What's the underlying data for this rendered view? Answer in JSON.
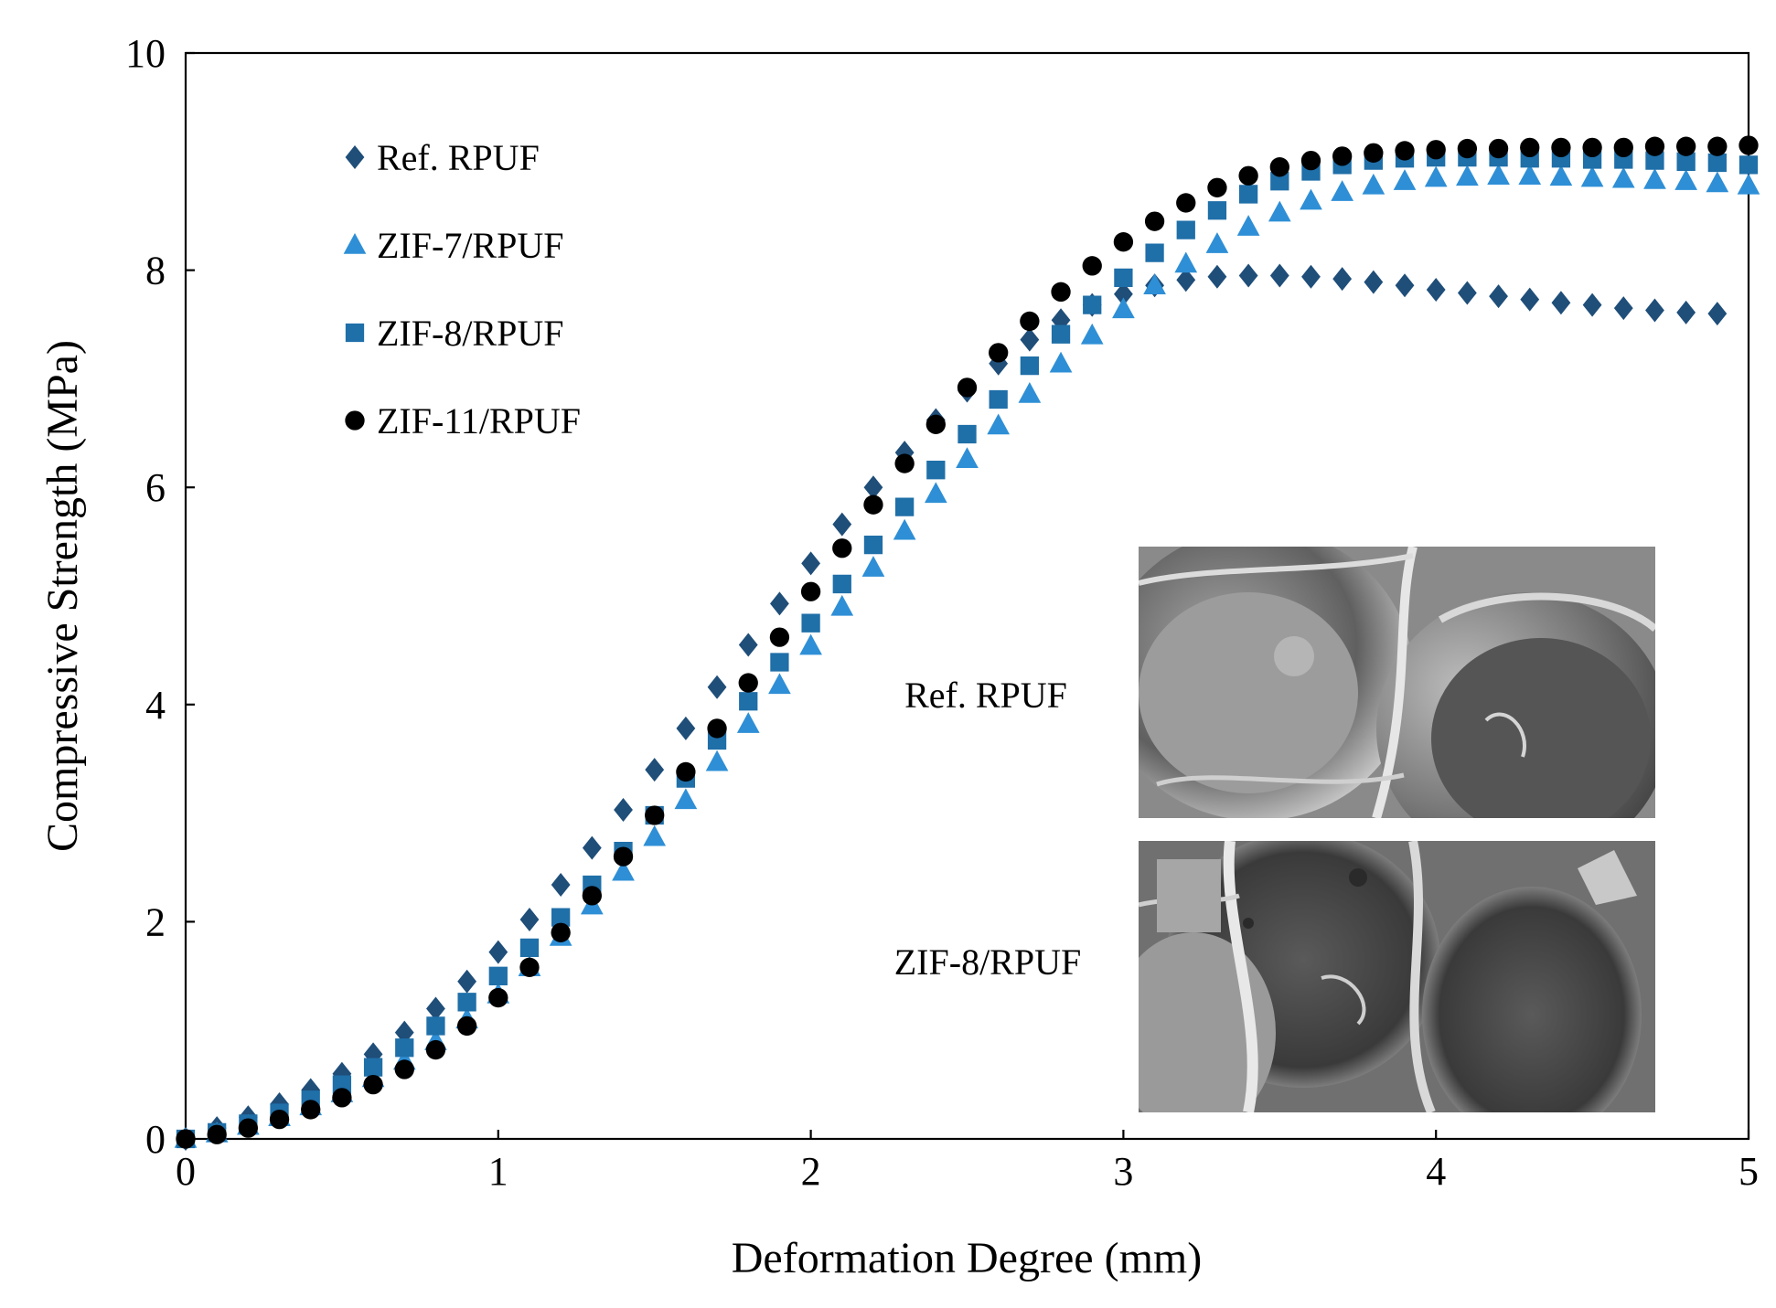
{
  "chart_data": {
    "type": "scatter",
    "title": "",
    "xlabel": "Deformation Degree (mm)",
    "ylabel": "Compressive Strength (MPa)",
    "xlim": [
      0,
      5
    ],
    "ylim": [
      0,
      10
    ],
    "xticks": [
      0,
      1,
      2,
      3,
      4,
      5
    ],
    "yticks": [
      0,
      2,
      4,
      6,
      8,
      10
    ],
    "grid": false,
    "legend_position": "top-left",
    "series": [
      {
        "name": "Ref. RPUF",
        "marker": "diamond",
        "color": "#1f4e79",
        "x": [
          0.0,
          0.1,
          0.2,
          0.3,
          0.4,
          0.5,
          0.6,
          0.7,
          0.8,
          0.9,
          1.0,
          1.1,
          1.2,
          1.3,
          1.4,
          1.5,
          1.6,
          1.7,
          1.8,
          1.9,
          2.0,
          2.1,
          2.2,
          2.3,
          2.4,
          2.5,
          2.6,
          2.7,
          2.8,
          2.9,
          3.0,
          3.1,
          3.2,
          3.3,
          3.4,
          3.5,
          3.6,
          3.7,
          3.8,
          3.9,
          4.0,
          4.1,
          4.2,
          4.3,
          4.4,
          4.5,
          4.6,
          4.7,
          4.8,
          4.9
        ],
        "y": [
          0.0,
          0.1,
          0.2,
          0.32,
          0.45,
          0.6,
          0.78,
          0.98,
          1.2,
          1.45,
          1.72,
          2.02,
          2.34,
          2.68,
          3.03,
          3.4,
          3.78,
          4.16,
          4.55,
          4.93,
          5.3,
          5.66,
          6.0,
          6.32,
          6.62,
          6.89,
          7.14,
          7.36,
          7.54,
          7.68,
          7.78,
          7.86,
          7.91,
          7.94,
          7.95,
          7.95,
          7.94,
          7.92,
          7.89,
          7.86,
          7.82,
          7.79,
          7.76,
          7.73,
          7.7,
          7.68,
          7.65,
          7.63,
          7.61,
          7.6
        ]
      },
      {
        "name": "ZIF-7/RPUF",
        "marker": "triangle",
        "color": "#2e8fd6",
        "x": [
          0.0,
          0.1,
          0.2,
          0.3,
          0.4,
          0.5,
          0.6,
          0.7,
          0.8,
          0.9,
          1.0,
          1.1,
          1.2,
          1.3,
          1.4,
          1.5,
          1.6,
          1.7,
          1.8,
          1.9,
          2.0,
          2.1,
          2.2,
          2.3,
          2.4,
          2.5,
          2.6,
          2.7,
          2.8,
          2.9,
          3.0,
          3.1,
          3.2,
          3.3,
          3.4,
          3.5,
          3.6,
          3.7,
          3.8,
          3.9,
          4.0,
          4.1,
          4.2,
          4.3,
          4.4,
          4.5,
          4.6,
          4.7,
          4.8,
          4.9,
          5.0
        ],
        "y": [
          0.0,
          0.05,
          0.12,
          0.2,
          0.3,
          0.42,
          0.56,
          0.72,
          0.9,
          1.1,
          1.33,
          1.58,
          1.86,
          2.15,
          2.46,
          2.78,
          3.12,
          3.47,
          3.82,
          4.18,
          4.54,
          4.9,
          5.26,
          5.6,
          5.94,
          6.26,
          6.57,
          6.86,
          7.14,
          7.4,
          7.64,
          7.86,
          8.06,
          8.24,
          8.4,
          8.53,
          8.64,
          8.72,
          8.78,
          8.82,
          8.85,
          8.86,
          8.87,
          8.87,
          8.86,
          8.85,
          8.84,
          8.83,
          8.82,
          8.8,
          8.78
        ]
      },
      {
        "name": "ZIF-8/RPUF",
        "marker": "square",
        "color": "#1f6fa8",
        "x": [
          0.0,
          0.1,
          0.2,
          0.3,
          0.4,
          0.5,
          0.6,
          0.7,
          0.8,
          0.9,
          1.0,
          1.1,
          1.2,
          1.3,
          1.4,
          1.5,
          1.6,
          1.7,
          1.8,
          1.9,
          2.0,
          2.1,
          2.2,
          2.3,
          2.4,
          2.5,
          2.6,
          2.7,
          2.8,
          2.9,
          3.0,
          3.1,
          3.2,
          3.3,
          3.4,
          3.5,
          3.6,
          3.7,
          3.8,
          3.9,
          4.0,
          4.1,
          4.2,
          4.3,
          4.4,
          4.5,
          4.6,
          4.7,
          4.8,
          4.9,
          5.0
        ],
        "y": [
          0.0,
          0.06,
          0.14,
          0.24,
          0.36,
          0.5,
          0.66,
          0.84,
          1.04,
          1.26,
          1.5,
          1.76,
          2.04,
          2.34,
          2.65,
          2.98,
          3.32,
          3.67,
          4.03,
          4.39,
          4.75,
          5.11,
          5.47,
          5.82,
          6.16,
          6.49,
          6.81,
          7.12,
          7.41,
          7.68,
          7.93,
          8.16,
          8.37,
          8.55,
          8.7,
          8.82,
          8.91,
          8.97,
          9.01,
          9.03,
          9.04,
          9.04,
          9.04,
          9.03,
          9.03,
          9.02,
          9.02,
          9.01,
          9.0,
          8.99,
          8.97
        ]
      },
      {
        "name": "ZIF-11/RPUF",
        "marker": "circle",
        "color": "#000000",
        "x": [
          0.0,
          0.1,
          0.2,
          0.3,
          0.4,
          0.5,
          0.6,
          0.7,
          0.8,
          0.9,
          1.0,
          1.1,
          1.2,
          1.3,
          1.4,
          1.5,
          1.6,
          1.7,
          1.8,
          1.9,
          2.0,
          2.1,
          2.2,
          2.3,
          2.4,
          2.5,
          2.6,
          2.7,
          2.8,
          2.9,
          3.0,
          3.1,
          3.2,
          3.3,
          3.4,
          3.5,
          3.6,
          3.7,
          3.8,
          3.9,
          4.0,
          4.1,
          4.2,
          4.3,
          4.4,
          4.5,
          4.6,
          4.7,
          4.8,
          4.9,
          5.0
        ],
        "y": [
          0.0,
          0.04,
          0.1,
          0.18,
          0.27,
          0.38,
          0.5,
          0.64,
          0.82,
          1.04,
          1.3,
          1.58,
          1.9,
          2.24,
          2.6,
          2.98,
          3.38,
          3.78,
          4.2,
          4.62,
          5.04,
          5.44,
          5.84,
          6.22,
          6.58,
          6.92,
          7.24,
          7.53,
          7.8,
          8.04,
          8.26,
          8.45,
          8.62,
          8.76,
          8.87,
          8.95,
          9.01,
          9.05,
          9.08,
          9.1,
          9.11,
          9.12,
          9.12,
          9.13,
          9.13,
          9.13,
          9.13,
          9.14,
          9.14,
          9.14,
          9.15
        ]
      }
    ],
    "inset_labels": [
      "Ref. RPUF",
      "ZIF-8/RPUF"
    ]
  },
  "colors": {
    "axis": "#000000",
    "ref_rpuf": "#1f4e79",
    "zif7": "#2e8fd6",
    "zif8": "#1f6fa8",
    "zif11": "#000000",
    "sem_base": "#6e6e6e"
  },
  "inset": {
    "top_image_label": "Ref. RPUF",
    "bottom_image_label": "ZIF-8/RPUF"
  }
}
